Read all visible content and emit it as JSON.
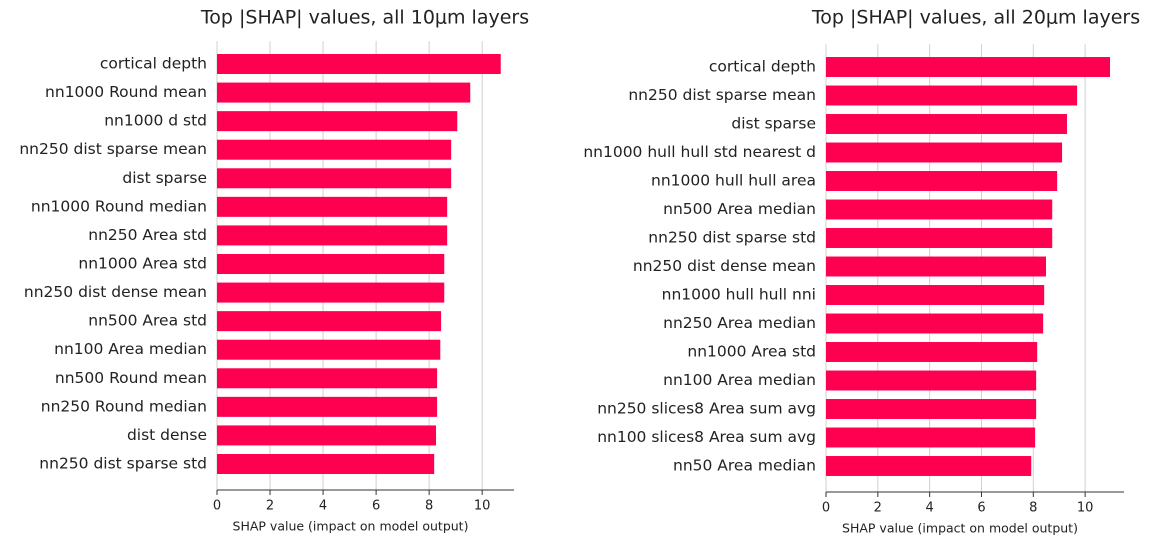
{
  "chart_data": [
    {
      "type": "barh",
      "title": "Top |SHAP| values, all 10μm layers",
      "xlabel": "SHAP value (impact on model output)",
      "categories": [
        "cortical depth",
        "nn1000 Round mean",
        "nn1000 d std",
        "nn250 dist sparse mean",
        "dist sparse",
        "nn1000 Round median",
        "nn250 Area std",
        "nn1000 Area std",
        "nn250 dist dense mean",
        "nn500 Area std",
        "nn100 Area median",
        "nn500 Round mean",
        "nn250 Round median",
        "dist dense",
        "nn250 dist sparse std"
      ],
      "values": [
        10.7,
        9.55,
        9.06,
        8.83,
        8.83,
        8.68,
        8.68,
        8.57,
        8.57,
        8.45,
        8.42,
        8.3,
        8.3,
        8.26,
        8.19
      ],
      "color": "#ff0051",
      "xlim": [
        0,
        11.2
      ],
      "xticks": [
        0,
        2,
        4,
        6,
        8,
        10
      ],
      "grid": true
    },
    {
      "type": "barh",
      "title": "Top |SHAP| values, all 20μm layers",
      "xlabel": "SHAP value (impact on model output)",
      "categories": [
        "cortical depth",
        "nn250 dist sparse mean",
        "dist sparse",
        "nn1000 hull hull std nearest d",
        "nn1000 hull hull area",
        "nn500 Area median",
        "nn250 dist sparse std",
        "nn250 dist dense mean",
        "nn1000 hull hull nni",
        "nn250 Area median",
        "nn1000 Area std",
        "nn100 Area median",
        "nn250 slices8 Area sum avg",
        "nn100 slices8 Area sum avg",
        "nn50 Area median"
      ],
      "values": [
        10.96,
        9.69,
        9.3,
        9.11,
        8.92,
        8.73,
        8.73,
        8.49,
        8.42,
        8.38,
        8.15,
        8.11,
        8.11,
        8.07,
        7.92
      ],
      "color": "#ff0051",
      "xlim": [
        0,
        11.5
      ],
      "xticks": [
        0,
        2,
        4,
        6,
        8,
        10
      ],
      "grid": true
    }
  ]
}
